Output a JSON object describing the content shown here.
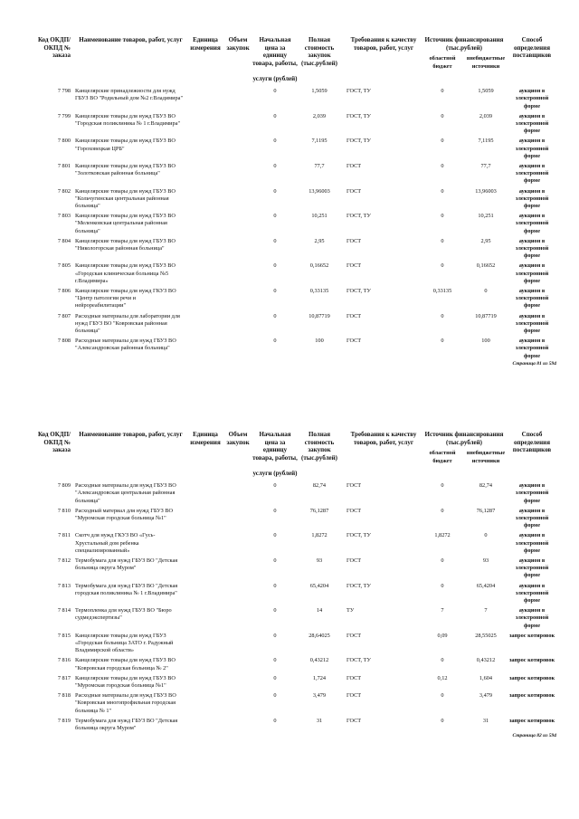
{
  "headers": {
    "code": "Код ОКДП/ ОКПД № заказа",
    "name": "Наименование товаров, работ, услуг",
    "unit": "Единица измерения",
    "volume": "Объем закупок",
    "unit_price": "Начальная цена за единицу товара, работы,",
    "unit_price_2": "услуги (рублей)",
    "total": "Полная стоимость закупок (тыс.рублей)",
    "requirements": "Требования к качеству товаров, работ, услуг",
    "source": "Источник финансирования (тыс.рублей)",
    "source_regional": "областной бюджет",
    "source_extra": "внебюджетные источники",
    "method": "Способ определения поставщиков"
  },
  "pages": [
    {
      "footer": "Страница 81 из 594",
      "rows": [
        {
          "code": "7 798",
          "name": "Канцелярские принадлежности для нужд ГБУЗ ВО \"Родильный дом №2 г.Владимира\"",
          "price": "0",
          "total": "1,5059",
          "req": "ГОСТ, ТУ",
          "regional": "0",
          "extra": "1,5059",
          "method": "аукцион в электронной форме"
        },
        {
          "code": "7 799",
          "name": "Канцелярские товары для нужд ГБУЗ ВО \"Городская поликлиника № 1 г.Владимира\"",
          "price": "0",
          "total": "2,039",
          "req": "ГОСТ, ТУ",
          "regional": "0",
          "extra": "2,039",
          "method": "аукцион в электронной форме"
        },
        {
          "code": "7 800",
          "name": "Канцелярские товары для нужд ГБУЗ ВО \"Гороховецкая ЦРБ\"",
          "price": "0",
          "total": "7,1195",
          "req": "ГОСТ, ТУ",
          "regional": "0",
          "extra": "7,1195",
          "method": "аукцион в электронной форме"
        },
        {
          "code": "7 801",
          "name": "Канцелярские товары для нужд ГБУЗ ВО \"Золотковская районная больница\"",
          "price": "0",
          "total": "77,7",
          "req": "ГОСТ",
          "regional": "0",
          "extra": "77,7",
          "method": "аукцион в электронной форме"
        },
        {
          "code": "7 802",
          "name": "Канцелярские товары для нужд ГБУЗ ВО \"Кольчугинская центральная районная больница\"",
          "price": "0",
          "total": "13,96003",
          "req": "ГОСТ",
          "regional": "0",
          "extra": "13,96003",
          "method": "аукцион в электронной форме"
        },
        {
          "code": "7 803",
          "name": "Канцелярские товары для нужд ГБУЗ ВО \"Меленковская центральная районная больница\"",
          "price": "0",
          "total": "10,251",
          "req": "ГОСТ, ТУ",
          "regional": "0",
          "extra": "10,251",
          "method": "аукцион в электронной форме"
        },
        {
          "code": "7 804",
          "name": "Канцелярские товары для нужд ГБУЗ ВО \"Никологорская районная больница\"",
          "price": "0",
          "total": "2,95",
          "req": "ГОСТ",
          "regional": "0",
          "extra": "2,95",
          "method": "аукцион в электронной форме"
        },
        {
          "code": "7 805",
          "name": "Канцелярские товары для нужд ГБУЗ ВО «Городская клиническая больница №5 г.Владимира»",
          "price": "0",
          "total": "0,16652",
          "req": "ГОСТ",
          "regional": "0",
          "extra": "0,16652",
          "method": "аукцион в электронной форме"
        },
        {
          "code": "7 806",
          "name": "Канцелярские товары для нужд ГКУЗ ВО \"Центр патологии речи и нейрореабилитации\"",
          "price": "0",
          "total": "0,33135",
          "req": "ГОСТ, ТУ",
          "regional": "0,33135",
          "extra": "0",
          "method": "аукцион в электронной форме"
        },
        {
          "code": "7 807",
          "name": "Расходные материалы для лаборатории для нужд ГБУЗ ВО \"Ковровская районная больница\"",
          "price": "0",
          "total": "10,87719",
          "req": "ГОСТ",
          "regional": "0",
          "extra": "10,87719",
          "method": "аукцион в электронной форме"
        },
        {
          "code": "7 808",
          "name": "Расходные материалы для нужд ГБУЗ ВО \"Александровская районная больница\"",
          "price": "0",
          "total": "100",
          "req": "ГОСТ",
          "regional": "0",
          "extra": "100",
          "method": "аукцион в электронной форме"
        }
      ]
    },
    {
      "footer": "Страница 82 из 594",
      "rows": [
        {
          "code": "7 809",
          "name": "Расходные материалы для нужд ГБУЗ ВО \"Александровская центральная районная больница\"",
          "price": "0",
          "total": "82,74",
          "req": "ГОСТ",
          "regional": "0",
          "extra": "82,74",
          "method": "аукцион в электронной форме"
        },
        {
          "code": "7 810",
          "name": "Расходный материал для нужд ГБУЗ ВО \"Муромская городская больница №1\"",
          "price": "0",
          "total": "76,1287",
          "req": "ГОСТ",
          "regional": "0",
          "extra": "76,1287",
          "method": "аукцион в электронной форме"
        },
        {
          "code": "7 811",
          "name": "Скотч для нужд ГКУЗ ВО «Гусь-Хрустальный дом ребенка специализированный»",
          "price": "0",
          "total": "1,8272",
          "req": "ГОСТ, ТУ",
          "regional": "1,8272",
          "extra": "0",
          "method": "аукцион в электронной форме"
        },
        {
          "code": "7 812",
          "name": "Термобумага для нужд ГБУЗ ВО \"Детская больница округа Муром\"",
          "price": "0",
          "total": "93",
          "req": "ГОСТ",
          "regional": "0",
          "extra": "93",
          "method": "аукцион в электронной форме"
        },
        {
          "code": "7 813",
          "name": "Термобумага для нужд ГБУЗ ВО \"Детская городская поликлиника № 1 г.Владимира\"",
          "price": "0",
          "total": "65,4204",
          "req": "ГОСТ, ТУ",
          "regional": "0",
          "extra": "65,4204",
          "method": "аукцион в электронной форме"
        },
        {
          "code": "7 814",
          "name": "Термопленка для нужд ГБУЗ ВО \"Бюро судмедэкспертизы\"",
          "price": "0",
          "total": "14",
          "req": "ТУ",
          "regional": "7",
          "extra": "7",
          "method": "аукцион в электронной форме"
        },
        {
          "code": "7 815",
          "name": "Канцелярские товары для нужд ГБУЗ «Городская больница ЗАТО г. Радужный Владимирской области»",
          "price": "0",
          "total": "28,64025",
          "req": "ГОСТ",
          "regional": "0,09",
          "extra": "28,55025",
          "method": "запрос котировок"
        },
        {
          "code": "7 816",
          "name": "Канцелярские товары для нужд ГБУЗ ВО \"Ковровская городская больница № 2\"",
          "price": "0",
          "total": "0,43212",
          "req": "ГОСТ, ТУ",
          "regional": "0",
          "extra": "0,43212",
          "method": "запрос котировок"
        },
        {
          "code": "7 817",
          "name": "Канцелярские товары для нужд ГБУЗ ВО \"Муромская городская больница №1\"",
          "price": "0",
          "total": "1,724",
          "req": "ГОСТ",
          "regional": "0,12",
          "extra": "1,604",
          "method": "запрос котировок"
        },
        {
          "code": "7 818",
          "name": "Расходные материалы для нужд ГБУЗ ВО \"Ковровская многопрофильная городская больница № 1\"",
          "price": "0",
          "total": "3,479",
          "req": "ГОСТ",
          "regional": "0",
          "extra": "3,479",
          "method": "запрос котировок"
        },
        {
          "code": "7 819",
          "name": "Термобумага для нужд ГБУЗ ВО \"Детская больница округа Муром\"",
          "price": "0",
          "total": "31",
          "req": "ГОСТ",
          "regional": "0",
          "extra": "31",
          "method": "запрос котировок"
        }
      ]
    }
  ]
}
